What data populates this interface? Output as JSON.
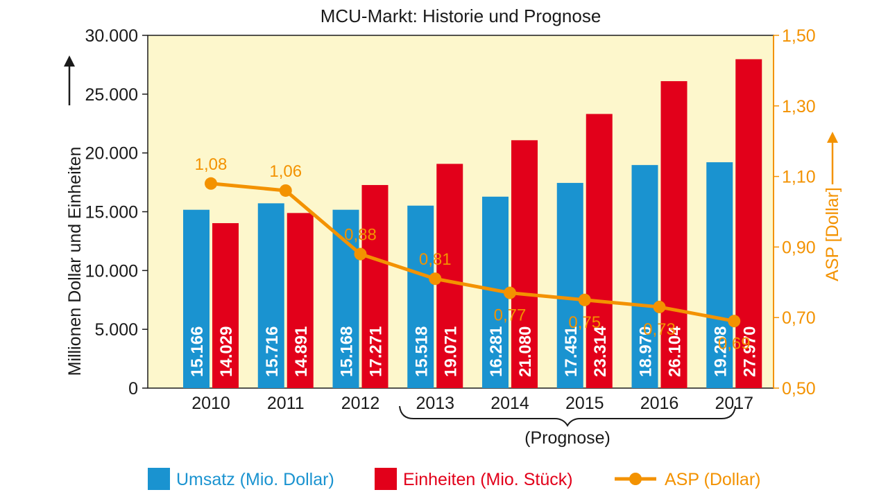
{
  "chart_data": {
    "type": "bar",
    "title": "MCU-Markt: Historie und Prognose",
    "categories": [
      "2010",
      "2011",
      "2012",
      "2013",
      "2014",
      "2015",
      "2016",
      "2017"
    ],
    "series": [
      {
        "name": "Umsatz (Mio. Dollar)",
        "axis": "left",
        "values": [
          15166,
          15716,
          15168,
          15518,
          16281,
          17451,
          18970,
          19208
        ],
        "labels": [
          "15.166",
          "15.716",
          "15.168",
          "15.518",
          "16.281",
          "17.451",
          "18.970",
          "19.208"
        ]
      },
      {
        "name": "Einheiten (Mio. Stück)",
        "axis": "left",
        "values": [
          14029,
          14891,
          17271,
          19071,
          21080,
          23314,
          26104,
          27970
        ],
        "labels": [
          "14.029",
          "14.891",
          "17.271",
          "19.071",
          "21.080",
          "23.314",
          "26.104",
          "27.970"
        ]
      },
      {
        "name": "ASP (Dollar)",
        "axis": "right",
        "type": "line",
        "values": [
          1.08,
          1.06,
          0.88,
          0.81,
          0.77,
          0.75,
          0.73,
          0.69
        ],
        "labels": [
          "1,08",
          "1,06",
          "0,88",
          "0,81",
          "0,77",
          "0,75",
          "0,73",
          "0,69"
        ]
      }
    ],
    "ylabel": "Millionen Dollar und Einheiten",
    "ylim": [
      0,
      30000
    ],
    "yticks": [
      "0",
      "5.000",
      "10.000",
      "15.000",
      "20.000",
      "25.000",
      "30.000"
    ],
    "y2label": "ASP [Dollar]",
    "y2lim": [
      0.5,
      1.5
    ],
    "y2ticks": [
      "0,50",
      "0,70",
      "0,90",
      "1,10",
      "1,30",
      "1,50"
    ],
    "forecast_label": "(Prognose)",
    "grid": false,
    "legend": "bottom",
    "colors": {
      "umsatz": "#1a93d0",
      "einheiten": "#e2001a",
      "asp": "#f39200",
      "plot_bg": "#fdf7cc"
    }
  }
}
